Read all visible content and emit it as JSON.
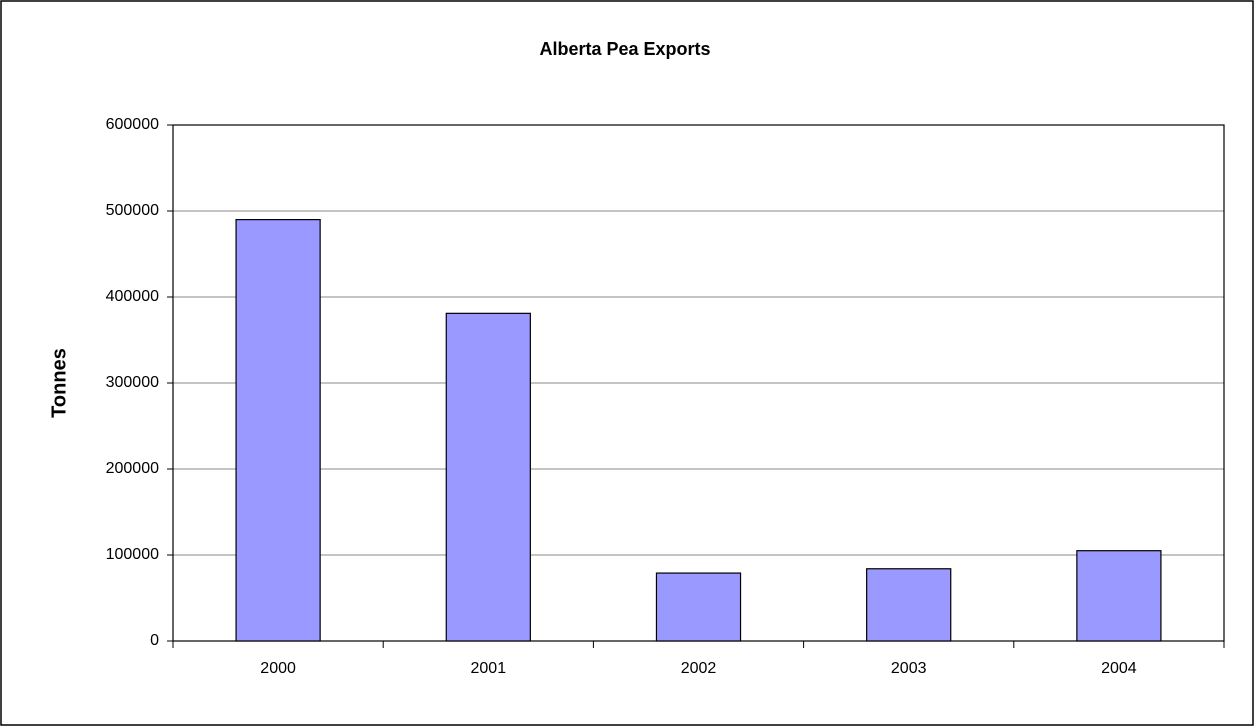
{
  "chart_data": {
    "type": "bar",
    "title": "Alberta Pea Exports",
    "y_label": "Tonnes",
    "categories": [
      "2000",
      "2001",
      "2002",
      "2003",
      "2004"
    ],
    "values": [
      490000,
      381000,
      79000,
      84000,
      105000
    ],
    "color": "#9999ff",
    "ylim": [
      0,
      600000
    ],
    "yticks": [
      0,
      100000,
      200000,
      300000,
      400000,
      500000,
      600000
    ],
    "grid": true
  }
}
